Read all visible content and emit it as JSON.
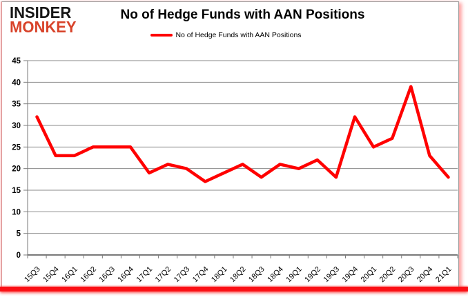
{
  "logo": {
    "line1": "INSIDER",
    "line2": "MONKEY"
  },
  "header": {
    "title": "No of Hedge Funds with AAN Positions"
  },
  "legend": {
    "label": "No of Hedge Funds with AAN Positions"
  },
  "colors": {
    "series_line": "#ff0000",
    "gridline": "#8a8a8a",
    "axis": "#4d4d4d",
    "tick": "#7a7a7a",
    "logo_black": "#161616",
    "logo_red": "#d8432a",
    "accent_bar": "#fb0f14"
  },
  "chart_data": {
    "type": "line",
    "title": "No of Hedge Funds with AAN Positions",
    "categories": [
      "15Q3",
      "15Q4",
      "16Q1",
      "16Q2",
      "16Q3",
      "16Q4",
      "17Q1",
      "17Q2",
      "17Q3",
      "17Q4",
      "18Q1",
      "18Q2",
      "18Q3",
      "18Q4",
      "19Q1",
      "19Q2",
      "19Q3",
      "19Q4",
      "20Q1",
      "20Q2",
      "20Q3",
      "20Q4",
      "21Q1"
    ],
    "series": [
      {
        "name": "No of Hedge Funds with AAN Positions",
        "color": "#ff0000",
        "values": [
          32,
          23,
          23,
          25,
          25,
          25,
          19,
          21,
          20,
          17,
          19,
          21,
          18,
          21,
          20,
          22,
          18,
          32,
          25,
          27,
          39,
          23,
          18
        ]
      }
    ],
    "xlabel": "",
    "ylabel": "",
    "ylim": [
      0,
      45
    ],
    "ytick_interval": 5,
    "grid": true,
    "legend_position": "top-center"
  }
}
